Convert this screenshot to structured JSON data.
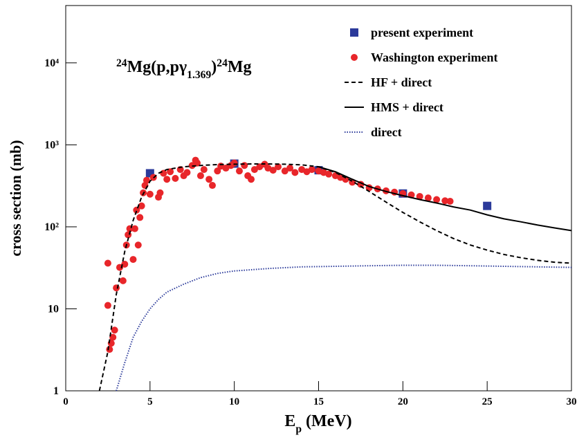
{
  "chart_data": {
    "type": "scatter",
    "title": [
      {
        "text": "24",
        "style": "sup"
      },
      {
        "text": "Mg(p,pγ",
        "style": "normal"
      },
      {
        "text": "1.369",
        "style": "sub"
      },
      {
        "text": ")",
        "style": "normal"
      },
      {
        "text": "24",
        "style": "sup"
      },
      {
        "text": "Mg",
        "style": "normal"
      }
    ],
    "x_label": [
      {
        "text": "E",
        "style": "normal"
      },
      {
        "text": "p",
        "style": "sub"
      },
      {
        "text": " (MeV)",
        "style": "normal"
      }
    ],
    "y_label": "cross section (mb)",
    "xlim": [
      0,
      30
    ],
    "xticks": [
      0,
      5,
      10,
      15,
      20,
      25,
      30
    ],
    "ylim": [
      1,
      50000
    ],
    "y_scale": "log",
    "yticks": [
      1,
      10,
      {
        "value": 100,
        "label": "10²"
      },
      {
        "value": 1000,
        "label": "10³"
      },
      {
        "value": 10000,
        "label": "10⁴"
      }
    ],
    "legend": "upper right",
    "series": [
      {
        "name": "present experiment",
        "color": "#2b3a9a",
        "mode": "markers",
        "marker": "square",
        "x": [
          5,
          10,
          15,
          20,
          25
        ],
        "values": [
          450,
          590,
          490,
          255,
          180
        ]
      },
      {
        "name": "Washington experiment",
        "color": "#e8262a",
        "mode": "markers",
        "marker": "circle",
        "x": [
          2.5,
          2.5,
          2.6,
          2.7,
          2.8,
          2.9,
          3.0,
          3.2,
          3.4,
          3.5,
          3.6,
          3.7,
          3.8,
          4.0,
          4.1,
          4.2,
          4.3,
          4.4,
          4.5,
          4.6,
          4.7,
          4.8,
          5.0,
          5.2,
          5.5,
          5.6,
          5.8,
          6.0,
          6.2,
          6.5,
          6.8,
          7.0,
          7.2,
          7.5,
          7.7,
          7.8,
          8.0,
          8.2,
          8.5,
          8.7,
          9.0,
          9.2,
          9.5,
          9.8,
          10.0,
          10.3,
          10.6,
          10.8,
          11.0,
          11.2,
          11.5,
          11.8,
          12.0,
          12.3,
          12.6,
          13.0,
          13.3,
          13.6,
          14.0,
          14.3,
          14.6,
          15.0,
          15.3,
          15.6,
          16.0,
          16.3,
          16.6,
          17.0,
          17.5,
          18.0,
          18.5,
          19.0,
          19.5,
          20.0,
          20.5,
          21.0,
          21.5,
          22.0,
          22.5,
          22.8
        ],
        "values": [
          36,
          11,
          3.2,
          3.8,
          4.5,
          5.5,
          18,
          32,
          22,
          35,
          60,
          80,
          95,
          40,
          95,
          160,
          60,
          130,
          180,
          260,
          320,
          370,
          250,
          400,
          230,
          260,
          450,
          380,
          470,
          390,
          500,
          420,
          460,
          560,
          650,
          600,
          420,
          500,
          380,
          320,
          480,
          550,
          520,
          560,
          600,
          480,
          560,
          420,
          380,
          500,
          540,
          580,
          520,
          490,
          540,
          480,
          520,
          460,
          500,
          470,
          500,
          480,
          460,
          440,
          420,
          400,
          380,
          350,
          330,
          300,
          290,
          275,
          265,
          255,
          245,
          235,
          225,
          215,
          208,
          205
        ]
      },
      {
        "name": "HF + direct",
        "color": "#000000",
        "mode": "line",
        "dash": "dashed",
        "x": [
          2,
          2.5,
          3,
          3.5,
          4,
          4.5,
          5,
          5.5,
          6,
          7,
          8,
          9,
          10,
          11,
          12,
          13,
          14,
          15,
          16,
          17,
          18,
          19,
          20,
          21,
          22,
          23,
          24,
          25,
          26,
          27,
          28,
          29,
          30
        ],
        "values": [
          1,
          3,
          15,
          50,
          120,
          230,
          360,
          450,
          500,
          540,
          560,
          575,
          580,
          585,
          585,
          580,
          570,
          540,
          460,
          360,
          270,
          200,
          150,
          115,
          90,
          72,
          60,
          52,
          46,
          42,
          39,
          37,
          36
        ]
      },
      {
        "name": "HMS + direct",
        "color": "#000000",
        "mode": "line",
        "dash": "solid",
        "x": [
          15,
          16,
          17,
          18,
          19,
          20,
          21,
          22,
          23,
          24,
          25,
          26,
          27,
          28,
          29,
          30
        ],
        "values": [
          540,
          470,
          380,
          310,
          270,
          240,
          215,
          195,
          175,
          160,
          140,
          125,
          115,
          105,
          97,
          90
        ]
      },
      {
        "name": "direct",
        "color": "#2b3a9a",
        "mode": "line",
        "dash": "dotted",
        "x": [
          3,
          3.5,
          4,
          4.5,
          5,
          5.5,
          6,
          7,
          8,
          9,
          10,
          12,
          14,
          16,
          18,
          20,
          22,
          24,
          26,
          28,
          30
        ],
        "values": [
          1,
          2.2,
          4.5,
          7,
          10,
          13,
          16,
          20,
          24,
          27,
          29,
          31,
          32.5,
          33,
          33.5,
          34,
          34,
          33.5,
          33,
          32.5,
          32
        ]
      }
    ]
  }
}
